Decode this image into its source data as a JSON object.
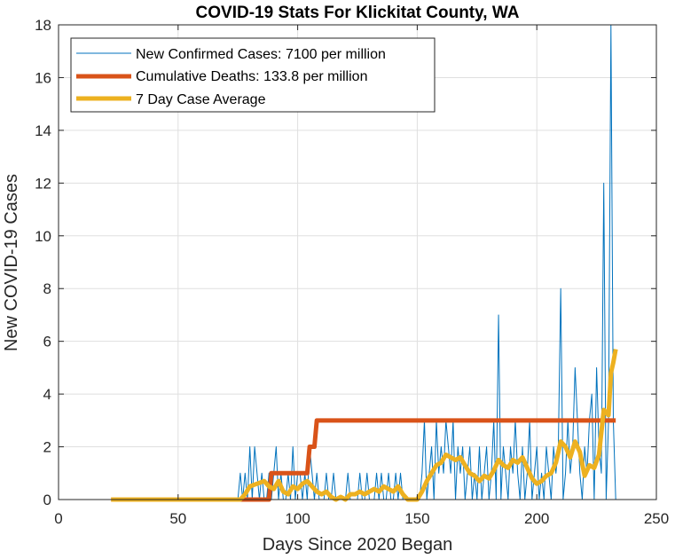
{
  "chart_data": {
    "type": "line",
    "title": "COVID-19 Stats For Klickitat County, WA",
    "xlabel": "Days Since 2020 Began",
    "ylabel": "New COVID-19 Cases",
    "xlim": [
      0,
      250
    ],
    "ylim": [
      0,
      18
    ],
    "x_ticks": [
      0,
      50,
      100,
      150,
      200,
      250
    ],
    "y_ticks": [
      0,
      2,
      4,
      6,
      8,
      10,
      12,
      14,
      16,
      18
    ],
    "grid": true,
    "legend_position": "top-left",
    "series": [
      {
        "name": "New Confirmed Cases: 7100 per million",
        "color": "#0072BD",
        "points": [
          [
            22,
            0
          ],
          [
            75,
            0
          ],
          [
            76,
            1
          ],
          [
            77,
            0
          ],
          [
            78,
            1
          ],
          [
            79,
            0
          ],
          [
            80,
            2
          ],
          [
            81,
            0
          ],
          [
            82,
            2
          ],
          [
            83,
            1
          ],
          [
            84,
            0
          ],
          [
            85,
            1
          ],
          [
            86,
            0
          ],
          [
            87,
            0
          ],
          [
            88,
            1
          ],
          [
            89,
            0
          ],
          [
            90,
            1
          ],
          [
            91,
            2
          ],
          [
            92,
            0
          ],
          [
            93,
            1
          ],
          [
            94,
            0
          ],
          [
            95,
            0
          ],
          [
            96,
            1
          ],
          [
            97,
            0
          ],
          [
            98,
            2
          ],
          [
            99,
            0
          ],
          [
            100,
            1
          ],
          [
            101,
            1
          ],
          [
            102,
            0
          ],
          [
            103,
            1
          ],
          [
            104,
            0
          ],
          [
            105,
            2
          ],
          [
            106,
            1
          ],
          [
            107,
            0
          ],
          [
            108,
            1
          ],
          [
            109,
            0
          ],
          [
            110,
            0
          ],
          [
            111,
            0
          ],
          [
            112,
            1
          ],
          [
            113,
            0
          ],
          [
            114,
            0
          ],
          [
            115,
            1
          ],
          [
            116,
            0
          ],
          [
            117,
            0
          ],
          [
            118,
            0
          ],
          [
            119,
            0
          ],
          [
            120,
            0
          ],
          [
            121,
            1
          ],
          [
            122,
            0
          ],
          [
            123,
            0
          ],
          [
            124,
            0
          ],
          [
            125,
            0
          ],
          [
            126,
            1
          ],
          [
            127,
            0
          ],
          [
            128,
            0
          ],
          [
            129,
            1
          ],
          [
            130,
            0
          ],
          [
            131,
            0
          ],
          [
            132,
            0
          ],
          [
            133,
            1
          ],
          [
            134,
            0
          ],
          [
            135,
            1
          ],
          [
            136,
            0
          ],
          [
            137,
            0
          ],
          [
            138,
            1
          ],
          [
            139,
            0
          ],
          [
            140,
            0
          ],
          [
            141,
            1
          ],
          [
            142,
            0
          ],
          [
            143,
            1
          ],
          [
            144,
            0
          ],
          [
            145,
            0
          ],
          [
            146,
            0
          ],
          [
            147,
            0
          ],
          [
            148,
            0
          ],
          [
            149,
            0
          ],
          [
            150,
            0
          ],
          [
            151,
            0
          ],
          [
            152,
            1
          ],
          [
            153,
            3
          ],
          [
            154,
            0
          ],
          [
            155,
            1
          ],
          [
            156,
            2
          ],
          [
            157,
            0
          ],
          [
            158,
            3
          ],
          [
            159,
            1
          ],
          [
            160,
            2
          ],
          [
            161,
            1
          ],
          [
            162,
            3
          ],
          [
            163,
            2
          ],
          [
            164,
            1
          ],
          [
            165,
            3
          ],
          [
            166,
            0
          ],
          [
            167,
            2
          ],
          [
            168,
            1
          ],
          [
            169,
            2
          ],
          [
            170,
            0
          ],
          [
            171,
            1
          ],
          [
            172,
            2
          ],
          [
            173,
            0
          ],
          [
            174,
            1
          ],
          [
            175,
            0
          ],
          [
            176,
            2
          ],
          [
            177,
            0
          ],
          [
            178,
            1
          ],
          [
            179,
            2
          ],
          [
            180,
            0
          ],
          [
            181,
            1
          ],
          [
            182,
            3
          ],
          [
            183,
            0
          ],
          [
            184,
            7
          ],
          [
            185,
            0
          ],
          [
            186,
            2
          ],
          [
            187,
            1
          ],
          [
            188,
            0
          ],
          [
            189,
            2
          ],
          [
            190,
            1
          ],
          [
            191,
            3
          ],
          [
            192,
            1
          ],
          [
            193,
            0
          ],
          [
            194,
            2
          ],
          [
            195,
            0
          ],
          [
            196,
            1
          ],
          [
            197,
            3
          ],
          [
            198,
            0
          ],
          [
            199,
            1
          ],
          [
            200,
            2
          ],
          [
            201,
            0
          ],
          [
            202,
            1
          ],
          [
            203,
            0
          ],
          [
            204,
            2
          ],
          [
            205,
            1
          ],
          [
            206,
            0
          ],
          [
            207,
            2
          ],
          [
            208,
            1
          ],
          [
            209,
            2
          ],
          [
            210,
            8
          ],
          [
            211,
            0
          ],
          [
            212,
            1
          ],
          [
            213,
            3
          ],
          [
            214,
            1
          ],
          [
            215,
            2
          ],
          [
            216,
            5
          ],
          [
            217,
            3
          ],
          [
            218,
            1
          ],
          [
            219,
            0
          ],
          [
            220,
            2
          ],
          [
            221,
            1
          ],
          [
            222,
            3
          ],
          [
            223,
            4
          ],
          [
            224,
            0
          ],
          [
            225,
            5
          ],
          [
            226,
            2
          ],
          [
            227,
            1
          ],
          [
            228,
            12
          ],
          [
            229,
            0
          ],
          [
            230,
            3
          ],
          [
            231,
            18
          ],
          [
            232,
            3
          ],
          [
            233,
            0
          ]
        ]
      },
      {
        "name": "Cumulative Deaths: 133.8 per million",
        "color": "#D95319",
        "points": [
          [
            22,
            0
          ],
          [
            88,
            0
          ],
          [
            89,
            1
          ],
          [
            104,
            1
          ],
          [
            105,
            2
          ],
          [
            107,
            2
          ],
          [
            108,
            3
          ],
          [
            233,
            3
          ]
        ]
      },
      {
        "name": "7 Day Case Average",
        "color": "#EDB120",
        "points": [
          [
            22,
            0
          ],
          [
            76,
            0
          ],
          [
            78,
            0.2
          ],
          [
            80,
            0.5
          ],
          [
            83,
            0.6
          ],
          [
            86,
            0.7
          ],
          [
            88,
            0.5
          ],
          [
            90,
            0.4
          ],
          [
            92,
            0.7
          ],
          [
            94,
            0.3
          ],
          [
            96,
            0.2
          ],
          [
            98,
            0.5
          ],
          [
            100,
            0.4
          ],
          [
            102,
            0.6
          ],
          [
            104,
            0.7
          ],
          [
            106,
            0.5
          ],
          [
            108,
            0.3
          ],
          [
            110,
            0.2
          ],
          [
            112,
            0.3
          ],
          [
            114,
            0.1
          ],
          [
            116,
            0.0
          ],
          [
            118,
            0.1
          ],
          [
            120,
            0.0
          ],
          [
            122,
            0.2
          ],
          [
            124,
            0.2
          ],
          [
            126,
            0.3
          ],
          [
            128,
            0.2
          ],
          [
            130,
            0.3
          ],
          [
            132,
            0.4
          ],
          [
            134,
            0.3
          ],
          [
            136,
            0.5
          ],
          [
            138,
            0.4
          ],
          [
            140,
            0.3
          ],
          [
            142,
            0.5
          ],
          [
            144,
            0.2
          ],
          [
            146,
            0.0
          ],
          [
            148,
            0.0
          ],
          [
            150,
            0.0
          ],
          [
            152,
            0.3
          ],
          [
            154,
            0.7
          ],
          [
            156,
            1.0
          ],
          [
            158,
            1.3
          ],
          [
            160,
            1.4
          ],
          [
            162,
            1.7
          ],
          [
            164,
            1.6
          ],
          [
            166,
            1.5
          ],
          [
            168,
            1.6
          ],
          [
            170,
            1.3
          ],
          [
            172,
            1.0
          ],
          [
            174,
            0.9
          ],
          [
            176,
            0.7
          ],
          [
            178,
            0.9
          ],
          [
            180,
            0.8
          ],
          [
            182,
            1.1
          ],
          [
            184,
            1.5
          ],
          [
            186,
            1.3
          ],
          [
            188,
            1.2
          ],
          [
            190,
            1.5
          ],
          [
            192,
            1.4
          ],
          [
            194,
            1.6
          ],
          [
            196,
            1.2
          ],
          [
            198,
            0.8
          ],
          [
            200,
            0.6
          ],
          [
            202,
            0.7
          ],
          [
            204,
            0.9
          ],
          [
            206,
            1.0
          ],
          [
            208,
            1.4
          ],
          [
            210,
            2.2
          ],
          [
            212,
            2.0
          ],
          [
            214,
            1.6
          ],
          [
            216,
            2.2
          ],
          [
            218,
            1.8
          ],
          [
            220,
            0.9
          ],
          [
            222,
            1.3
          ],
          [
            224,
            1.2
          ],
          [
            226,
            1.7
          ],
          [
            228,
            3.4
          ],
          [
            230,
            3.2
          ],
          [
            231,
            4.8
          ],
          [
            232,
            5.2
          ],
          [
            233,
            5.7
          ]
        ]
      }
    ]
  }
}
